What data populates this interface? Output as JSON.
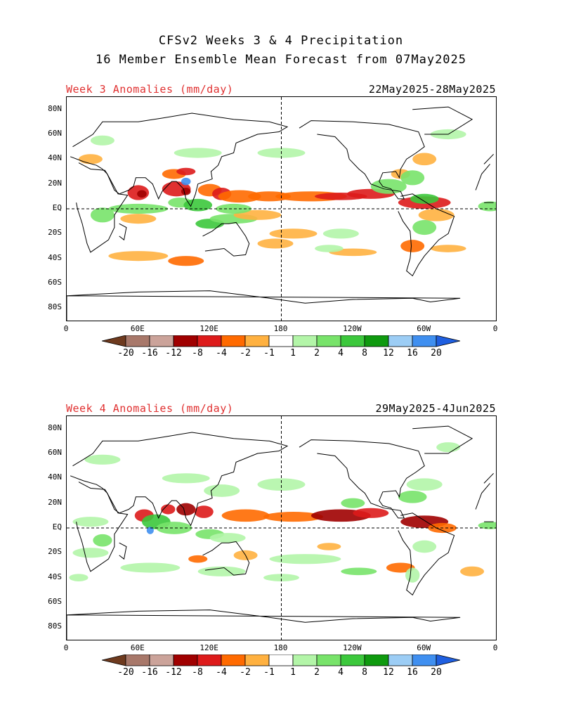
{
  "header": {
    "title_line1": "CFSv2 Weeks 3 & 4 Precipitation",
    "title_line2": "16 Member Ensemble Mean Forecast from 07May2025"
  },
  "panels": [
    {
      "label": "Week 3 Anomalies (mm/day)",
      "date_range": "22May2025-28May2025"
    },
    {
      "label": "Week 4 Anomalies (mm/day)",
      "date_range": "29May2025-4Jun2025"
    }
  ],
  "axes": {
    "lat_ticks": [
      "80N",
      "60N",
      "40N",
      "20N",
      "EQ",
      "20S",
      "40S",
      "60S",
      "80S"
    ],
    "lon_ticks": [
      "0",
      "60E",
      "120E",
      "180",
      "120W",
      "60W",
      "0"
    ]
  },
  "colorbar": {
    "labels": [
      "-20",
      "-16",
      "-12",
      "-8",
      "-4",
      "-2",
      "-1",
      "1",
      "2",
      "4",
      "8",
      "12",
      "16",
      "20"
    ],
    "colors": [
      "#6e3a1e",
      "#a8786a",
      "#cba39a",
      "#a00000",
      "#dd1b1b",
      "#ff6a00",
      "#ffb140",
      "#ffffff",
      "#b3f5a8",
      "#78e36a",
      "#3cc83c",
      "#0f9a0f",
      "#9ccdf5",
      "#3f8ff0",
      "#1f5fe0"
    ]
  }
}
